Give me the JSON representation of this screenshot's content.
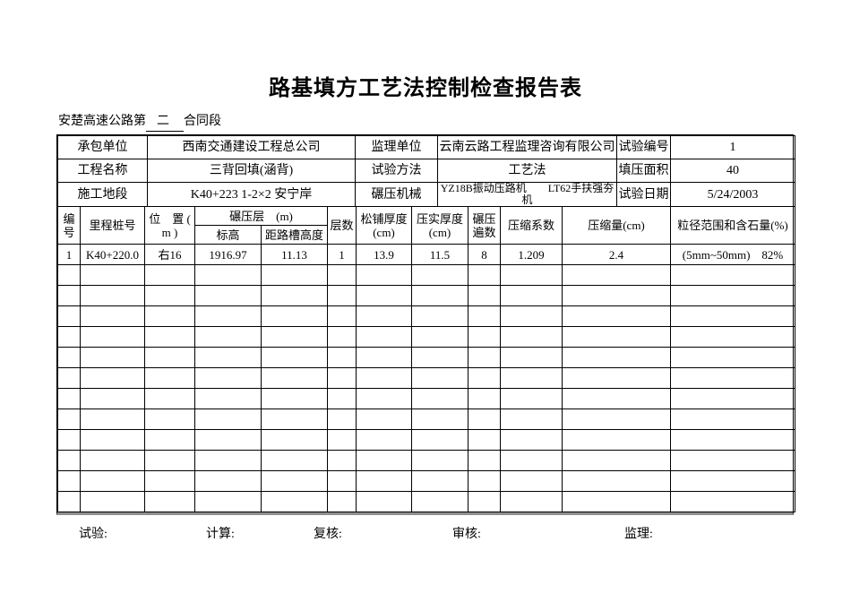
{
  "page": {
    "title": "路基填方工艺法控制检查报告表",
    "subtitle": {
      "prefix": "安楚高速公路第",
      "blank": "二",
      "suffix": "合同段"
    }
  },
  "info": {
    "rows": [
      [
        "承包单位",
        "西南交通建设工程总公司",
        "监理单位",
        "云南云路工程监理咨询有限公司",
        "试验编号",
        "1"
      ],
      [
        "工程名称",
        "三背回填(涵背)",
        "试验方法",
        "工艺法",
        "填压面积",
        "40"
      ],
      [
        "施工地段",
        "K40+223 1-2×2 安宁岸",
        "碾压机械",
        "YZ18B振动压路机　　LT62手扶强夯机",
        "试验日期",
        "5/24/2003"
      ]
    ]
  },
  "grid": {
    "headers": {
      "no": "编号",
      "station": "里程桩号",
      "position": "位　置 ( m )",
      "rolling_layer": "碾压层　(m)",
      "elevation": "标高",
      "height_to_trough": "距路槽高度",
      "layer_count": "层数",
      "loose_thickness": "松铺厚度 (cm)",
      "compacted_thickness": "压实厚度 (cm)",
      "rolling_passes": "碾压遍数",
      "compression_coefficient": "压缩系数",
      "compression_amount": "压缩量(cm)",
      "particle_range": "粒径范围和含石量(%)"
    },
    "data_row": [
      "1",
      "K40+220.0",
      "右16",
      "1916.97",
      "11.13",
      "1",
      "13.9",
      "11.5",
      "8",
      "1.209",
      "2.4",
      "(5mm~50mm)　82%"
    ],
    "empty_row_count": 12
  },
  "footer": {
    "labels": [
      "试验:",
      "计算:",
      "复核:",
      "审核:",
      "监理:"
    ]
  },
  "colors": {
    "text": "#000000",
    "background": "#ffffff",
    "grid_border": "#000000",
    "bottom_shadow": "#8f8f8f"
  }
}
